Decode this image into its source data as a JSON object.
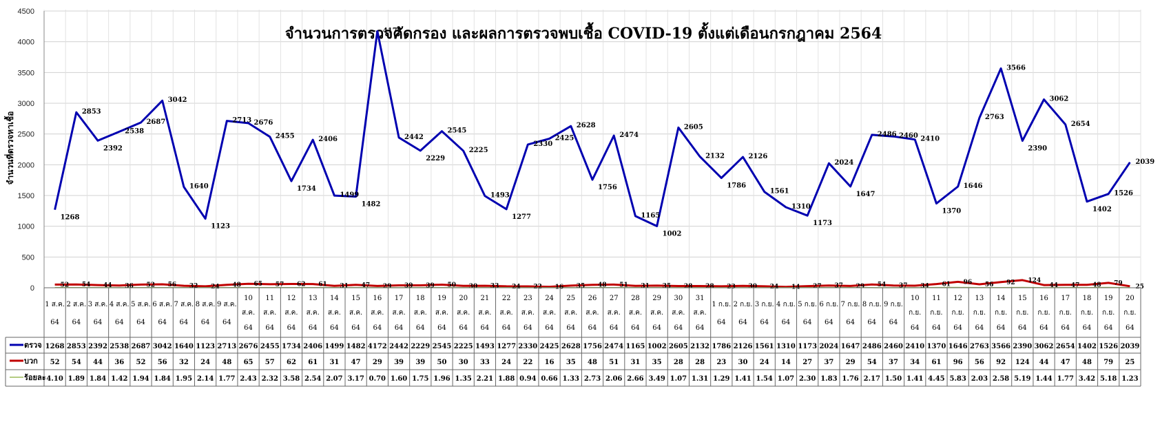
{
  "chart_data": {
    "type": "line",
    "title": "จำนวนการตรวจคัดกรอง และผลการตรวจพบเชื้อ COVID-19 ตั้งแต่เดือนกรกฎาคม 2564",
    "ylabel": "จำนวนที่ตรวจหาเชื้อ",
    "xlabel": "",
    "ylim": [
      0,
      4500
    ],
    "yticks": [
      0,
      500,
      1000,
      1500,
      2000,
      2500,
      3000,
      3500,
      4000,
      4500
    ],
    "grid": true,
    "legend": "table-bottom",
    "categories": [
      [
        "1 ส.ค.",
        "64"
      ],
      [
        "2 ส.ค.",
        "64"
      ],
      [
        "3 ส.ค.",
        "64"
      ],
      [
        "4 ส.ค.",
        "64"
      ],
      [
        "5 ส.ค.",
        "64"
      ],
      [
        "6 ส.ค.",
        "64"
      ],
      [
        "7 ส.ค.",
        "64"
      ],
      [
        "8 ส.ค.",
        "64"
      ],
      [
        "9 ส.ค.",
        "64"
      ],
      [
        "10",
        "ส.ค.",
        "64"
      ],
      [
        "11",
        "ส.ค.",
        "64"
      ],
      [
        "12",
        "ส.ค.",
        "64"
      ],
      [
        "13",
        "ส.ค.",
        "64"
      ],
      [
        "14",
        "ส.ค.",
        "64"
      ],
      [
        "15",
        "ส.ค.",
        "64"
      ],
      [
        "16",
        "ส.ค.",
        "64"
      ],
      [
        "17",
        "ส.ค.",
        "64"
      ],
      [
        "18",
        "ส.ค.",
        "64"
      ],
      [
        "19",
        "ส.ค.",
        "64"
      ],
      [
        "20",
        "ส.ค.",
        "64"
      ],
      [
        "21",
        "ส.ค.",
        "64"
      ],
      [
        "22",
        "ส.ค.",
        "64"
      ],
      [
        "23",
        "ส.ค.",
        "64"
      ],
      [
        "24",
        "ส.ค.",
        "64"
      ],
      [
        "25",
        "ส.ค.",
        "64"
      ],
      [
        "26",
        "ส.ค.",
        "64"
      ],
      [
        "27",
        "ส.ค.",
        "64"
      ],
      [
        "28",
        "ส.ค.",
        "64"
      ],
      [
        "29",
        "ส.ค.",
        "64"
      ],
      [
        "30",
        "ส.ค.",
        "64"
      ],
      [
        "31",
        "ส.ค.",
        "64"
      ],
      [
        "1 ก.ย.",
        "64"
      ],
      [
        "2 ก.ย.",
        "64"
      ],
      [
        "3 ก.ย.",
        "64"
      ],
      [
        "4 ก.ย.",
        "64"
      ],
      [
        "5 ก.ย.",
        "64"
      ],
      [
        "6 ก.ย.",
        "64"
      ],
      [
        "7 ก.ย.",
        "64"
      ],
      [
        "8 ก.ย.",
        "64"
      ],
      [
        "9 ก.ย.",
        "64"
      ],
      [
        "10",
        "ก.ย.",
        "64"
      ],
      [
        "11",
        "ก.ย.",
        "64"
      ],
      [
        "12",
        "ก.ย.",
        "64"
      ],
      [
        "13",
        "ก.ย.",
        "64"
      ],
      [
        "14",
        "ก.ย.",
        "64"
      ],
      [
        "15",
        "ก.ย.",
        "64"
      ],
      [
        "16",
        "ก.ย.",
        "64"
      ],
      [
        "17",
        "ก.ย.",
        "64"
      ],
      [
        "18",
        "ก.ย.",
        "64"
      ],
      [
        "19",
        "ก.ย.",
        "64"
      ],
      [
        "20",
        "ก.ย.",
        "64"
      ]
    ],
    "series": [
      {
        "name": "ตรวจ",
        "color": "#0000b0",
        "values": [
          1268,
          2853,
          2392,
          2538,
          2687,
          3042,
          1640,
          1123,
          2713,
          2676,
          2455,
          1734,
          2406,
          1499,
          1482,
          4172,
          2442,
          2229,
          2545,
          2225,
          1493,
          1277,
          2330,
          2425,
          2628,
          1756,
          2474,
          1165,
          1002,
          2605,
          2132,
          1786,
          2126,
          1561,
          1310,
          1173,
          2024,
          1647,
          2486,
          2460,
          2410,
          1370,
          1646,
          2763,
          3566,
          2390,
          3062,
          2654,
          1402,
          1526,
          2039
        ]
      },
      {
        "name": "บวก",
        "color": "#c00000",
        "values": [
          52,
          54,
          44,
          36,
          52,
          56,
          32,
          24,
          48,
          65,
          57,
          62,
          61,
          31,
          47,
          29,
          39,
          39,
          50,
          30,
          33,
          24,
          22,
          16,
          35,
          48,
          51,
          31,
          35,
          28,
          28,
          23,
          30,
          24,
          14,
          27,
          37,
          29,
          54,
          37,
          34,
          61,
          96,
          56,
          92,
          124,
          44,
          47,
          48,
          79,
          25
        ]
      },
      {
        "name": "ร้อยละ",
        "color": "#9bbb59",
        "values": [
          "4.10",
          "1.89",
          "1.84",
          "1.42",
          "1.94",
          "1.84",
          "1.95",
          "2.14",
          "1.77",
          "2.43",
          "2.32",
          "3.58",
          "2.54",
          "2.07",
          "3.17",
          "0.70",
          "1.60",
          "1.75",
          "1.96",
          "1.35",
          "2.21",
          "1.88",
          "0.94",
          "0.66",
          "1.33",
          "2.73",
          "2.06",
          "2.66",
          "3.49",
          "1.07",
          "1.31",
          "1.29",
          "1.41",
          "1.54",
          "1.07",
          "2.30",
          "1.83",
          "1.76",
          "2.17",
          "1.50",
          "1.41",
          "4.45",
          "5.83",
          "2.03",
          "2.58",
          "5.19",
          "1.44",
          "1.77",
          "3.42",
          "5.18",
          "1.23"
        ]
      }
    ]
  }
}
